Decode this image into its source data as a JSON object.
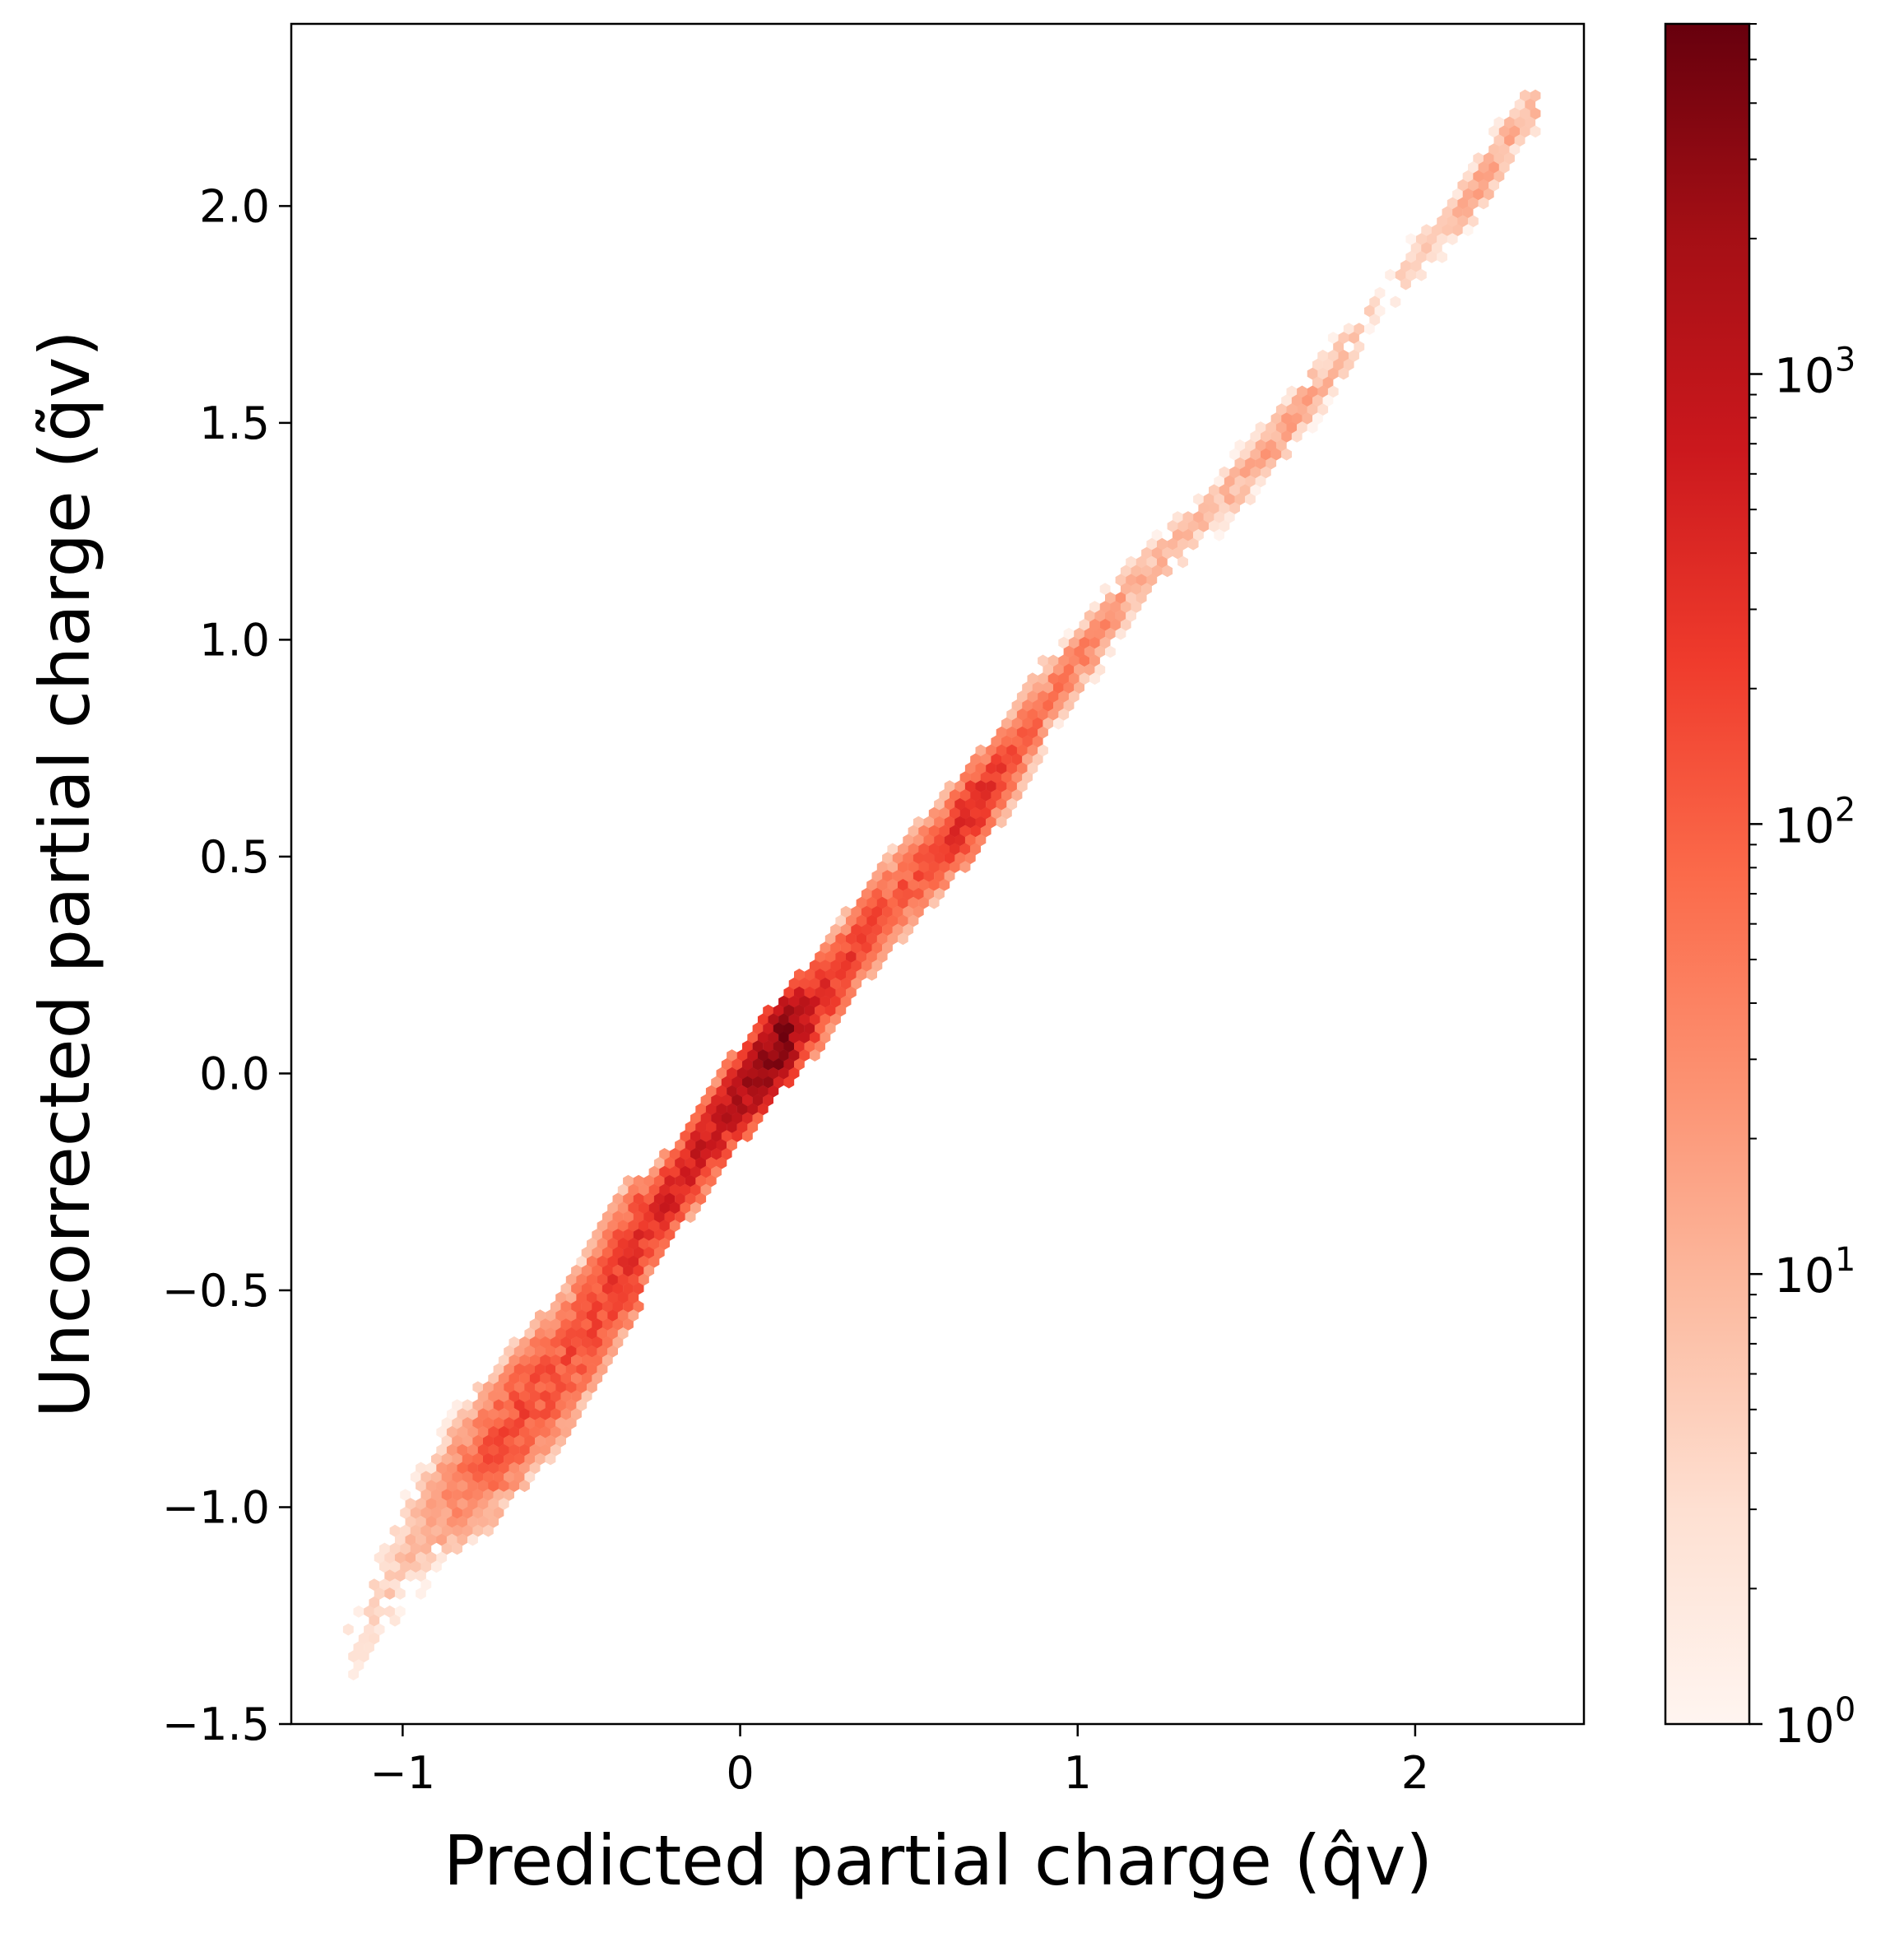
{
  "chart_data": {
    "type": "heatmap",
    "title": "",
    "xlabel": "Predicted partial charge (q̂v)",
    "ylabel": "Uncorrected partial charge (q̃v)",
    "xlim": [
      -1.33,
      2.5
    ],
    "ylim": [
      -1.5,
      2.42
    ],
    "xticks": [
      {
        "value": -1,
        "label": "−1"
      },
      {
        "value": 0,
        "label": "0"
      },
      {
        "value": 1,
        "label": "1"
      },
      {
        "value": 2,
        "label": "2"
      }
    ],
    "yticks": [
      {
        "value": -1.5,
        "label": "−1.5"
      },
      {
        "value": -1.0,
        "label": "−1.0"
      },
      {
        "value": -0.5,
        "label": "−0.5"
      },
      {
        "value": 0.0,
        "label": "0.0"
      },
      {
        "value": 0.5,
        "label": "0.5"
      },
      {
        "value": 1.0,
        "label": "1.0"
      },
      {
        "value": 1.5,
        "label": "1.5"
      },
      {
        "value": 2.0,
        "label": "2.0"
      }
    ],
    "colorbar": {
      "scale": "log",
      "colormap": "Reds",
      "range": [
        1,
        6000
      ],
      "ticks": [
        {
          "value": 1,
          "base": "10",
          "exp": "0"
        },
        {
          "value": 10,
          "base": "10",
          "exp": "1"
        },
        {
          "value": 100,
          "base": "10",
          "exp": "2"
        },
        {
          "value": 1000,
          "base": "10",
          "exp": "3"
        }
      ]
    },
    "density_ridge": [
      {
        "x": -1.15,
        "y": -1.32,
        "count": 2
      },
      {
        "x": -1.05,
        "y": -1.18,
        "count": 5
      },
      {
        "x": -0.95,
        "y": -1.05,
        "count": 10
      },
      {
        "x": -0.85,
        "y": -0.95,
        "count": 40
      },
      {
        "x": -0.75,
        "y": -0.88,
        "count": 120
      },
      {
        "x": -0.65,
        "y": -0.78,
        "count": 200
      },
      {
        "x": -0.55,
        "y": -0.7,
        "count": 150
      },
      {
        "x": -0.45,
        "y": -0.58,
        "count": 180
      },
      {
        "x": -0.35,
        "y": -0.45,
        "count": 260
      },
      {
        "x": -0.25,
        "y": -0.33,
        "count": 450
      },
      {
        "x": -0.15,
        "y": -0.22,
        "count": 700
      },
      {
        "x": -0.05,
        "y": -0.1,
        "count": 900
      },
      {
        "x": 0.05,
        "y": 0.0,
        "count": 2500
      },
      {
        "x": 0.12,
        "y": 0.07,
        "count": 5000
      },
      {
        "x": 0.25,
        "y": 0.18,
        "count": 400
      },
      {
        "x": 0.35,
        "y": 0.3,
        "count": 200
      },
      {
        "x": 0.45,
        "y": 0.4,
        "count": 120
      },
      {
        "x": 0.55,
        "y": 0.48,
        "count": 150
      },
      {
        "x": 0.7,
        "y": 0.62,
        "count": 500
      },
      {
        "x": 0.8,
        "y": 0.72,
        "count": 150
      },
      {
        "x": 0.9,
        "y": 0.85,
        "count": 60
      },
      {
        "x": 1.05,
        "y": 1.0,
        "count": 40
      },
      {
        "x": 1.2,
        "y": 1.15,
        "count": 10
      },
      {
        "x": 1.4,
        "y": 1.3,
        "count": 8
      },
      {
        "x": 1.6,
        "y": 1.47,
        "count": 20
      },
      {
        "x": 1.75,
        "y": 1.62,
        "count": 10
      },
      {
        "x": 1.9,
        "y": 1.78,
        "count": 3
      },
      {
        "x": 2.05,
        "y": 1.92,
        "count": 5
      },
      {
        "x": 2.2,
        "y": 2.05,
        "count": 20
      },
      {
        "x": 2.33,
        "y": 2.22,
        "count": 8
      }
    ]
  }
}
